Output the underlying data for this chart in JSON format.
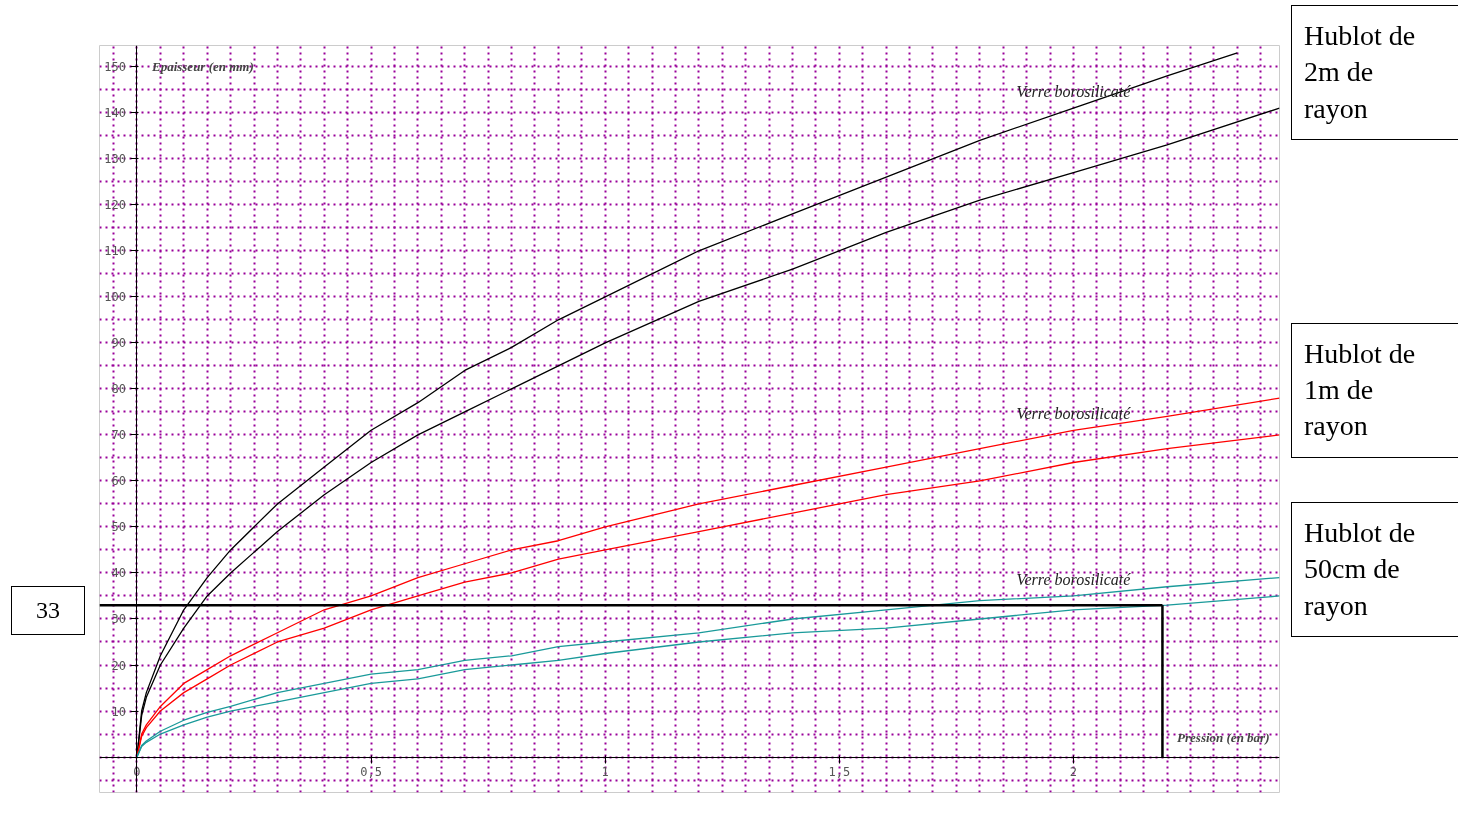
{
  "chart_data": {
    "type": "line",
    "xlabel": "Pression (en bar)",
    "ylabel": "Epaisseur (en mm)",
    "xlim": [
      -0.08,
      2.44
    ],
    "ylim": [
      -7.7,
      154.6
    ],
    "xticks": [
      0,
      {
        "value": 0.5,
        "label": "0,5"
      },
      1,
      {
        "value": 1.5,
        "label": "1,5"
      },
      2
    ],
    "yticks": [
      10,
      20,
      30,
      40,
      50,
      60,
      70,
      80,
      90,
      100,
      110,
      120,
      130,
      140,
      150
    ],
    "grid": true,
    "line_style": "solid",
    "series": [
      {
        "name": "Verre borosilicaté",
        "color": "#000000",
        "x": [
          0,
          0.01,
          0.02,
          0.05,
          0.1,
          0.15,
          0.2,
          0.3,
          0.4,
          0.5,
          0.6,
          0.7,
          0.8,
          0.9,
          1,
          1.2,
          1.4,
          1.6,
          1.8,
          2,
          2.2,
          2.35
        ],
        "values": [
          0,
          10,
          14,
          22,
          32,
          39,
          45,
          55,
          63,
          71,
          77,
          84,
          89,
          95,
          100,
          110,
          118,
          126,
          134,
          141,
          148,
          153
        ]
      },
      {
        "color": "#000000",
        "x": [
          0,
          0.01,
          0.02,
          0.05,
          0.1,
          0.15,
          0.2,
          0.3,
          0.4,
          0.5,
          0.6,
          0.7,
          0.8,
          0.9,
          1,
          1.2,
          1.4,
          1.6,
          1.8,
          2,
          2.2,
          2.44
        ],
        "values": [
          0,
          9,
          13,
          20,
          28,
          35,
          40,
          49,
          57,
          64,
          70,
          75,
          80,
          85,
          90,
          99,
          106,
          114,
          121,
          127,
          133,
          141
        ]
      },
      {
        "name": "Verre borosilicaté",
        "color": "#ff0000",
        "x": [
          0,
          0.01,
          0.02,
          0.05,
          0.1,
          0.15,
          0.2,
          0.3,
          0.4,
          0.5,
          0.6,
          0.7,
          0.8,
          0.9,
          1,
          1.2,
          1.4,
          1.6,
          1.8,
          2,
          2.2,
          2.44
        ],
        "values": [
          0,
          5,
          7,
          11,
          16,
          19,
          22,
          27,
          32,
          35,
          39,
          42,
          45,
          47,
          50,
          55,
          59,
          63,
          67,
          71,
          74,
          78
        ]
      },
      {
        "color": "#ff0000",
        "x": [
          0,
          0.01,
          0.02,
          0.05,
          0.1,
          0.15,
          0.2,
          0.3,
          0.4,
          0.5,
          0.6,
          0.7,
          0.8,
          0.9,
          1,
          1.2,
          1.4,
          1.6,
          1.8,
          2,
          2.2,
          2.44
        ],
        "values": [
          0,
          4.5,
          6.4,
          10,
          14,
          17,
          20,
          25,
          28,
          32,
          35,
          38,
          40,
          43,
          45,
          49,
          53,
          57,
          60,
          64,
          67,
          70
        ]
      },
      {
        "name": "Verre borosilicaté",
        "color": "#1a9a9a",
        "x": [
          0,
          0.01,
          0.02,
          0.05,
          0.1,
          0.15,
          0.2,
          0.3,
          0.4,
          0.5,
          0.6,
          0.7,
          0.8,
          0.9,
          1,
          1.2,
          1.4,
          1.6,
          1.8,
          2,
          2.2,
          2.44
        ],
        "values": [
          0,
          2.5,
          3.5,
          5.6,
          8,
          9.7,
          11,
          14,
          16,
          18,
          19,
          21,
          22,
          24,
          25,
          27,
          30,
          32,
          34,
          35,
          37,
          39
        ]
      },
      {
        "color": "#1a9a9a",
        "x": [
          0,
          0.01,
          0.02,
          0.05,
          0.1,
          0.15,
          0.2,
          0.3,
          0.4,
          0.5,
          0.6,
          0.7,
          0.8,
          0.9,
          1,
          1.2,
          1.4,
          1.6,
          1.8,
          2,
          2.2,
          2.44
        ],
        "values": [
          0,
          2.3,
          3.2,
          5,
          7,
          8.7,
          10,
          12,
          14,
          16,
          17,
          19,
          20,
          21,
          22.5,
          25,
          27,
          28,
          30,
          32,
          33,
          35
        ]
      }
    ],
    "ref_lines": [
      {
        "axis": "y",
        "value": 33,
        "label": "33",
        "color": "#000000"
      },
      {
        "axis": "x",
        "value": 2.19,
        "color": "#000000"
      }
    ],
    "annotations": [
      "Hublot de\n2m de\nrayon",
      "Hublot de\n1m de\nrayon",
      "Hublot de\n50cm de\nrayon"
    ]
  }
}
